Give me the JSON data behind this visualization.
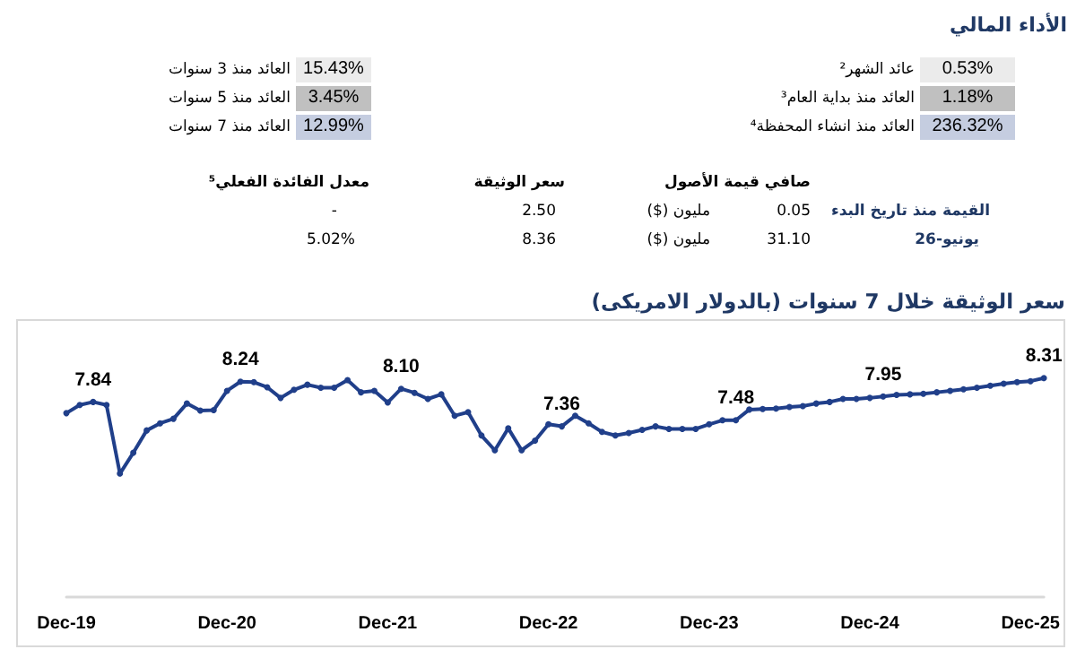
{
  "chart_data": {
    "type": "line",
    "title": "سعر الوثيقة خلال 7 سنوات (بالدولار الامريكى)",
    "annotations": [
      "الأداء المالي",
      "عائد الشهر²",
      "0.53%",
      "العائد منذ بداية العام³",
      "1.18%",
      "العائد منذ انشاء المحفظة⁴",
      "236.32%",
      "العائد منذ 3 سنوات",
      "15.43%",
      "العائد منذ 5 سنوات",
      "3.45%",
      "العائد منذ 7 سنوات",
      "12.99%",
      "صافي قيمة الأصول",
      "سعر الوثيقة",
      "معدل الفائدة الفعلي⁵",
      "القيمة منذ تاريخ البدء",
      "0.05",
      "مليون ($)",
      "2.50",
      "-",
      "يونيو-26",
      "31.10",
      "مليون ($)",
      "8.36",
      "5.02%"
    ],
    "categories": [
      "Dec-19",
      null,
      null,
      null,
      null,
      null,
      null,
      null,
      null,
      null,
      null,
      null,
      "Dec-20",
      null,
      null,
      null,
      null,
      null,
      null,
      null,
      null,
      null,
      null,
      null,
      "Dec-21",
      null,
      null,
      null,
      null,
      null,
      null,
      null,
      null,
      null,
      null,
      null,
      "Dec-22",
      null,
      null,
      null,
      null,
      null,
      null,
      null,
      null,
      null,
      null,
      null,
      "Dec-23",
      null,
      null,
      null,
      null,
      null,
      null,
      null,
      null,
      null,
      null,
      null,
      "Dec-24",
      null,
      null,
      null,
      null,
      null,
      null,
      null,
      null,
      null,
      null,
      null,
      "Dec-25",
      null
    ],
    "series": [
      {
        "color": "#203f8a",
        "values": [
          7.62,
          7.78,
          7.84,
          7.78,
          6.43,
          6.84,
          7.28,
          7.42,
          7.51,
          7.81,
          7.67,
          7.68,
          8.06,
          8.24,
          8.23,
          8.13,
          7.92,
          8.08,
          8.18,
          8.12,
          8.12,
          8.27,
          8.03,
          8.06,
          7.83,
          8.1,
          8.02,
          7.9,
          7.99,
          7.57,
          7.64,
          7.18,
          6.89,
          7.32,
          6.89,
          7.08,
          7.4,
          7.36,
          7.57,
          7.42,
          7.25,
          7.18,
          7.23,
          7.29,
          7.36,
          7.31,
          7.31,
          7.31,
          7.4,
          7.48,
          7.48,
          7.69,
          7.7,
          7.71,
          7.74,
          7.76,
          7.81,
          7.84,
          7.9,
          7.9,
          7.92,
          7.95,
          7.98,
          7.99,
          8.0,
          8.03,
          8.06,
          8.09,
          8.12,
          8.16,
          8.2,
          8.23,
          8.25,
          8.31
        ],
        "value_labels": [
          null,
          null,
          "7.84",
          null,
          null,
          null,
          null,
          null,
          null,
          null,
          null,
          null,
          null,
          "8.24",
          null,
          null,
          null,
          null,
          null,
          null,
          null,
          null,
          null,
          null,
          null,
          "8.10",
          null,
          null,
          null,
          null,
          null,
          null,
          null,
          null,
          null,
          null,
          null,
          "7.36",
          null,
          null,
          null,
          null,
          null,
          null,
          null,
          null,
          null,
          null,
          null,
          null,
          "7.48",
          null,
          null,
          null,
          null,
          null,
          null,
          null,
          null,
          null,
          null,
          "7.95",
          null,
          null,
          null,
          null,
          null,
          null,
          null,
          null,
          null,
          null,
          null,
          "8.31"
        ]
      }
    ],
    "ylim": [
      4,
      9.4
    ],
    "tick_labels": "x",
    "grid": false,
    "marker": "circle",
    "line_style": "solid"
  }
}
